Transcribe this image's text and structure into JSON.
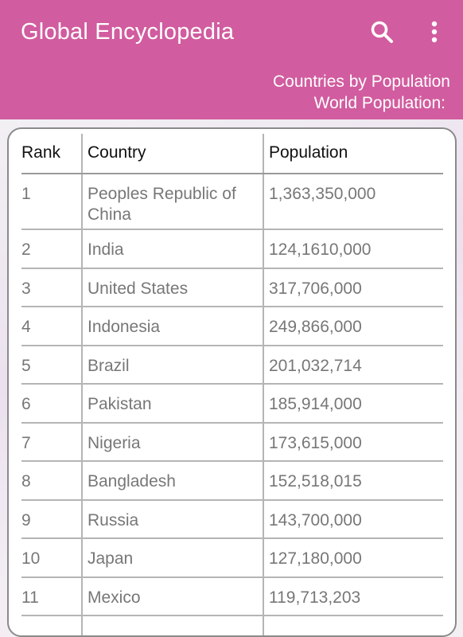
{
  "app": {
    "title": "Global Encyclopedia",
    "accent_color": "#d15c9f",
    "actions": {
      "search_icon": "search-icon",
      "more_icon": "more-vert-icon"
    }
  },
  "header": {
    "subtitle": "Countries by Population",
    "world_population_label": "World Population:"
  },
  "table": {
    "columns": [
      "Rank",
      "Country",
      "Population"
    ],
    "rows": [
      {
        "rank": "1",
        "country": "Peoples Republic of China",
        "population": "1,363,350,000"
      },
      {
        "rank": "2",
        "country": "India",
        "population": "124,1610,000"
      },
      {
        "rank": "3",
        "country": "United States",
        "population": "317,706,000"
      },
      {
        "rank": "4",
        "country": "Indonesia",
        "population": "249,866,000"
      },
      {
        "rank": "5",
        "country": "Brazil",
        "population": "201,032,714"
      },
      {
        "rank": "6",
        "country": "Pakistan",
        "population": "185,914,000"
      },
      {
        "rank": "7",
        "country": "Nigeria",
        "population": "173,615,000"
      },
      {
        "rank": "8",
        "country": "Bangladesh",
        "population": "152,518,015"
      },
      {
        "rank": "9",
        "country": "Russia",
        "population": "143,700,000"
      },
      {
        "rank": "10",
        "country": "Japan",
        "population": "127,180,000"
      },
      {
        "rank": "11",
        "country": "Mexico",
        "population": "119,713,203"
      }
    ]
  }
}
